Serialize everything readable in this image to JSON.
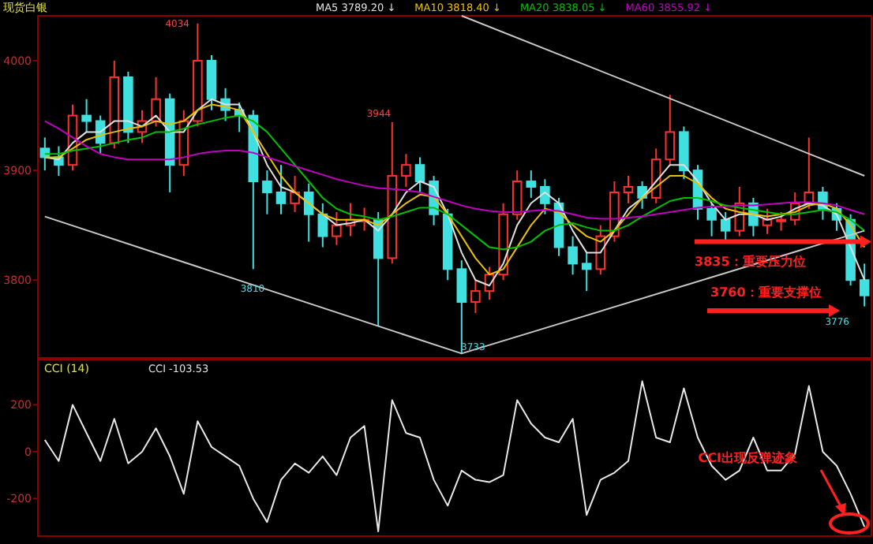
{
  "chart_data": [
    {
      "type": "candlestick",
      "title": "现货白银",
      "legend": "top",
      "grid": false,
      "categories": [
        null,
        null,
        null,
        null,
        null,
        null,
        null,
        null,
        null,
        null,
        null,
        null,
        null,
        null,
        null,
        null,
        null,
        null,
        null,
        null,
        null,
        null,
        null,
        null,
        null,
        null,
        null,
        null,
        null,
        null,
        null,
        null,
        null,
        null,
        null,
        null,
        null,
        null,
        null,
        null,
        null,
        null,
        null,
        null,
        null,
        null,
        null,
        null,
        null,
        null,
        null,
        null,
        null,
        null,
        null,
        null,
        null,
        null,
        null,
        null
      ],
      "ohlc": [
        [
          3920,
          3930,
          3900,
          3912
        ],
        [
          3912,
          3922,
          3895,
          3905
        ],
        [
          3905,
          3960,
          3900,
          3950
        ],
        [
          3950,
          3965,
          3935,
          3945
        ],
        [
          3945,
          3950,
          3915,
          3925
        ],
        [
          3925,
          4000,
          3920,
          3985
        ],
        [
          3985,
          3990,
          3925,
          3935
        ],
        [
          3935,
          3955,
          3925,
          3945
        ],
        [
          3945,
          3985,
          3940,
          3965
        ],
        [
          3965,
          3970,
          3880,
          3905
        ],
        [
          3905,
          3955,
          3895,
          3945
        ],
        [
          3945,
          4034,
          3940,
          4000
        ],
        [
          4000,
          4005,
          3955,
          3965
        ],
        [
          3965,
          3975,
          3945,
          3955
        ],
        [
          3955,
          3962,
          3935,
          3950
        ],
        [
          3950,
          3955,
          3810,
          3890
        ],
        [
          3890,
          3900,
          3860,
          3880
        ],
        [
          3880,
          3905,
          3860,
          3870
        ],
        [
          3870,
          3895,
          3862,
          3880
        ],
        [
          3880,
          3888,
          3835,
          3860
        ],
        [
          3860,
          3870,
          3830,
          3840
        ],
        [
          3840,
          3862,
          3832,
          3850
        ],
        [
          3850,
          3870,
          3840,
          3855
        ],
        [
          3855,
          3866,
          3845,
          3855
        ],
        [
          3855,
          3862,
          3758,
          3820
        ],
        [
          3820,
          3944,
          3815,
          3895
        ],
        [
          3895,
          3915,
          3885,
          3905
        ],
        [
          3905,
          3912,
          3880,
          3890
        ],
        [
          3890,
          3895,
          3850,
          3860
        ],
        [
          3860,
          3865,
          3800,
          3810
        ],
        [
          3810,
          3818,
          3733,
          3780
        ],
        [
          3780,
          3800,
          3770,
          3790
        ],
        [
          3790,
          3812,
          3782,
          3805
        ],
        [
          3805,
          3870,
          3800,
          3860
        ],
        [
          3860,
          3900,
          3855,
          3890
        ],
        [
          3890,
          3900,
          3875,
          3885
        ],
        [
          3885,
          3892,
          3860,
          3870
        ],
        [
          3870,
          3875,
          3822,
          3830
        ],
        [
          3830,
          3840,
          3805,
          3815
        ],
        [
          3815,
          3825,
          3790,
          3810
        ],
        [
          3810,
          3850,
          3805,
          3840
        ],
        [
          3840,
          3890,
          3835,
          3880
        ],
        [
          3880,
          3895,
          3870,
          3885
        ],
        [
          3885,
          3890,
          3865,
          3875
        ],
        [
          3875,
          3920,
          3870,
          3910
        ],
        [
          3910,
          3969,
          3905,
          3935
        ],
        [
          3935,
          3940,
          3892,
          3900
        ],
        [
          3900,
          3905,
          3855,
          3865
        ],
        [
          3865,
          3870,
          3840,
          3855
        ],
        [
          3855,
          3862,
          3835,
          3845
        ],
        [
          3845,
          3885,
          3840,
          3870
        ],
        [
          3870,
          3875,
          3840,
          3850
        ],
        [
          3850,
          3865,
          3842,
          3855
        ],
        [
          3855,
          3862,
          3845,
          3855
        ],
        [
          3855,
          3880,
          3850,
          3870
        ],
        [
          3870,
          3930,
          3865,
          3880
        ],
        [
          3880,
          3885,
          3855,
          3865
        ],
        [
          3865,
          3870,
          3845,
          3855
        ],
        [
          3855,
          3860,
          3795,
          3800
        ],
        [
          3800,
          3815,
          3776,
          3786
        ]
      ],
      "series": [
        {
          "type": "line",
          "name": "MA5 3789.20 ↓",
          "color": "#e0e0e0",
          "values": [
            3912,
            3910,
            3925,
            3935,
            3935,
            3945,
            3945,
            3940,
            3950,
            3935,
            3935,
            3955,
            3965,
            3960,
            3960,
            3935,
            3905,
            3885,
            3880,
            3870,
            3860,
            3850,
            3852,
            3855,
            3845,
            3860,
            3880,
            3890,
            3885,
            3860,
            3825,
            3800,
            3795,
            3815,
            3850,
            3870,
            3880,
            3870,
            3845,
            3825,
            3825,
            3845,
            3865,
            3875,
            3890,
            3905,
            3905,
            3890,
            3870,
            3855,
            3860,
            3860,
            3855,
            3858,
            3865,
            3870,
            3868,
            3860,
            3830,
            3800
          ]
        },
        {
          "type": "line",
          "name": "MA10 3818.40 ↓",
          "color": "#e8c000",
          "values": [
            3912,
            3912,
            3920,
            3928,
            3932,
            3935,
            3938,
            3940,
            3945,
            3942,
            3945,
            3955,
            3960,
            3958,
            3955,
            3935,
            3915,
            3895,
            3880,
            3870,
            3860,
            3855,
            3855,
            3855,
            3850,
            3860,
            3870,
            3878,
            3876,
            3860,
            3840,
            3820,
            3805,
            3810,
            3830,
            3850,
            3865,
            3862,
            3850,
            3840,
            3835,
            3845,
            3860,
            3875,
            3885,
            3895,
            3895,
            3888,
            3875,
            3865,
            3862,
            3860,
            3858,
            3860,
            3862,
            3868,
            3870,
            3865,
            3850,
            3830
          ]
        },
        {
          "type": "line",
          "name": "MA20 3838.05 ↓",
          "color": "#00c000",
          "values": [
            3915,
            3915,
            3918,
            3920,
            3922,
            3925,
            3928,
            3930,
            3935,
            3935,
            3938,
            3942,
            3945,
            3948,
            3950,
            3945,
            3935,
            3920,
            3905,
            3890,
            3875,
            3865,
            3860,
            3858,
            3855,
            3858,
            3862,
            3866,
            3866,
            3860,
            3850,
            3840,
            3830,
            3828,
            3830,
            3835,
            3845,
            3850,
            3852,
            3848,
            3845,
            3845,
            3850,
            3858,
            3865,
            3872,
            3875,
            3875,
            3872,
            3868,
            3866,
            3864,
            3862,
            3860,
            3860,
            3862,
            3864,
            3862,
            3855,
            3845
          ]
        },
        {
          "type": "line",
          "name": "MA60 3855.92 ↓",
          "color": "#c000c0",
          "values": [
            3945,
            3938,
            3930,
            3922,
            3915,
            3912,
            3910,
            3910,
            3910,
            3910,
            3912,
            3915,
            3917,
            3918,
            3918,
            3916,
            3912,
            3908,
            3904,
            3900,
            3896,
            3892,
            3889,
            3886,
            3884,
            3883,
            3882,
            3880,
            3876,
            3872,
            3868,
            3865,
            3863,
            3862,
            3862,
            3863,
            3864,
            3863,
            3860,
            3857,
            3856,
            3856,
            3857,
            3858,
            3860,
            3862,
            3864,
            3866,
            3867,
            3867,
            3868,
            3868,
            3869,
            3870,
            3871,
            3871,
            3870,
            3868,
            3864,
            3860
          ]
        },
        {
          "type": "line",
          "color": "#c8c8c8",
          "values": [
            null,
            null,
            null,
            null,
            null,
            null,
            null,
            null,
            null,
            null,
            null,
            null,
            null,
            null,
            null,
            null,
            null,
            null,
            null,
            null,
            null,
            null,
            null,
            null,
            null,
            null,
            null,
            null,
            null,
            null,
            4041,
            null,
            null,
            null,
            null,
            null,
            null,
            null,
            null,
            null,
            null,
            null,
            null,
            null,
            null,
            null,
            null,
            null,
            null,
            null,
            null,
            null,
            null,
            null,
            null,
            null,
            null,
            null,
            null,
            3895
          ]
        },
        {
          "type": "line",
          "color": "#c8c8c8",
          "values": [
            3858,
            null,
            null,
            null,
            null,
            null,
            null,
            null,
            null,
            null,
            null,
            null,
            null,
            null,
            null,
            null,
            null,
            null,
            null,
            null,
            null,
            null,
            null,
            null,
            null,
            null,
            null,
            null,
            null,
            null,
            3733,
            null,
            null,
            null,
            null,
            null,
            null,
            null,
            null,
            null,
            null,
            null,
            null,
            null,
            null,
            null,
            null,
            null,
            null,
            null,
            null,
            null,
            null,
            null,
            null,
            null,
            null,
            null,
            null,
            3845
          ]
        }
      ],
      "ylim": [
        3729,
        4041
      ],
      "yticks": [
        3800,
        3900,
        4000
      ],
      "tick_labels": "y",
      "ref_lines": [
        {
          "axis": "y",
          "value": 3835,
          "label": "3835：重要压力位",
          "color": "#ff2020"
        }
      ],
      "annotations": [
        "4034",
        "3810",
        "3944",
        "3733",
        "3776",
        "3760：重要支撑位"
      ]
    },
    {
      "type": "line",
      "title": "CCI (14)",
      "grid": false,
      "categories": [
        null,
        null,
        null,
        null,
        null,
        null,
        null,
        null,
        null,
        null,
        null,
        null,
        null,
        null,
        null,
        null,
        null,
        null,
        null,
        null,
        null,
        null,
        null,
        null,
        null,
        null,
        null,
        null,
        null,
        null,
        null,
        null,
        null,
        null,
        null,
        null,
        null,
        null,
        null,
        null,
        null,
        null,
        null,
        null,
        null,
        null,
        null,
        null,
        null,
        null,
        null,
        null,
        null,
        null,
        null,
        null,
        null,
        null,
        null,
        null
      ],
      "series": [
        {
          "color": "#e8e8e8",
          "values": [
            50,
            -40,
            200,
            80,
            -40,
            140,
            -50,
            0,
            100,
            -20,
            -180,
            130,
            20,
            -20,
            -60,
            -200,
            -300,
            -120,
            -50,
            -90,
            -20,
            -100,
            60,
            110,
            -340,
            220,
            80,
            60,
            -120,
            -230,
            -80,
            -120,
            -130,
            -100,
            220,
            120,
            60,
            40,
            140,
            -270,
            -120,
            -90,
            -40,
            300,
            60,
            40,
            270,
            60,
            -60,
            -120,
            -80,
            60,
            -80,
            -80,
            -10,
            280,
            0,
            -60,
            -180,
            -320
          ]
        }
      ],
      "ylim": [
        -360,
        393
      ],
      "yticks": [
        200,
        0,
        -200
      ],
      "tick_labels": "y",
      "annotations": [
        "CCI  -103.53",
        "CCI出现反弹迹象"
      ]
    }
  ]
}
